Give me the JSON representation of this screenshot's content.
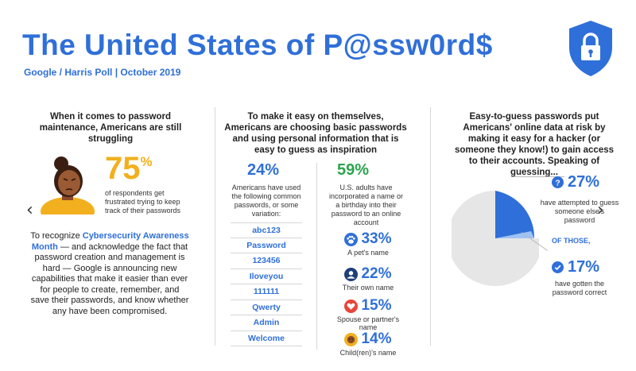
{
  "header": {
    "title": "The United States of P@ssw0rd$",
    "subtitle": "Google / Harris Poll  | October 2019",
    "shield_icon": "lock-shield-icon",
    "brand_color": "#2f6fd9"
  },
  "navigation": {
    "prev_icon": "chevron-left-icon",
    "next_icon": "chevron-right-icon",
    "prev_glyph": "‹",
    "next_glyph": "›"
  },
  "column1": {
    "heading": "When it comes to password maintenance, Americans are still struggling",
    "stat_value": "75",
    "stat_unit": "%",
    "stat_color": "#f2b01e",
    "stat_desc": "of respondents get frustrated trying to keep track of their passwords",
    "body_pre": "To recognize ",
    "body_highlight": "Cybersecurity Awareness Month",
    "body_post": " — and acknowledge the fact that password creation and management is hard — Google is announcing new capabilities that make it easier than ever for people to create, remember, and save their passwords, and know whether any have been compromised."
  },
  "column2": {
    "heading": "To make it easy on themselves, Americans are choosing basic passwords and using personal information that is easy to guess as inspiration",
    "left_value": "24%",
    "left_desc": "Americans have used the following common passwords, or some variation:",
    "passwords": [
      "abc123",
      "Password",
      "123456",
      "Iloveyou",
      "111111",
      "Qwerty",
      "Admin",
      "Welcome"
    ],
    "right_value": "59%",
    "right_color": "#2da44e",
    "right_desc": "U.S. adults have incorporated a name or a birthday into their password to an online account",
    "stats": [
      {
        "value": "33%",
        "label": "A pet's name",
        "icon": "paw-icon"
      },
      {
        "value": "22%",
        "label": "Their own name",
        "icon": "person-icon"
      },
      {
        "value": "15%",
        "label": "Spouse or partner's name",
        "icon": "heart-icon"
      },
      {
        "value": "14%",
        "label": "Child(ren)'s name",
        "icon": "child-icon"
      }
    ]
  },
  "column3": {
    "heading": "Easy-to-guess passwords put Americans' online data at risk by making it easy for a hacker (or someone they know!) to gain access to their accounts. Speaking of guessing...",
    "stat1_value": "27%",
    "stat1_desc": "have attempted to guess someone else's password",
    "of_those": "OF THOSE,",
    "stat2_value": "17%",
    "stat2_desc": "have gotten the password correct",
    "pie_fraction": 0.27,
    "pie_colors": {
      "slice": "#2f6fd9",
      "rest": "#e6e6e6"
    }
  }
}
